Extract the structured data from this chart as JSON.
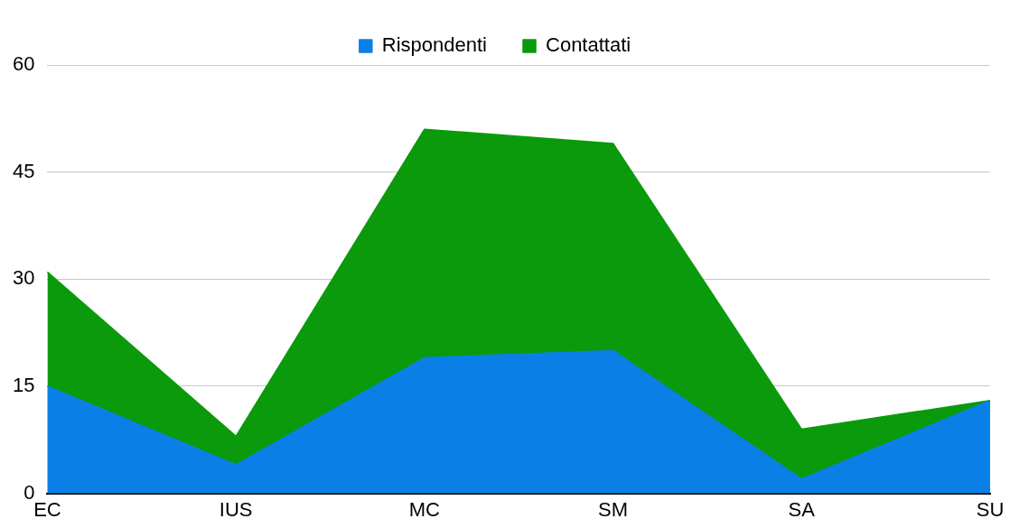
{
  "chart_data": {
    "type": "area",
    "categories": [
      "EC",
      "IUS",
      "MC",
      "SM",
      "SA",
      "SU"
    ],
    "series": [
      {
        "name": "Contattati",
        "color": "#0b9a0b",
        "values": [
          31,
          8,
          51,
          49,
          9,
          13
        ]
      },
      {
        "name": "Rispondenti",
        "color": "#0a80e6",
        "values": [
          15,
          4,
          19,
          20,
          2,
          13
        ]
      }
    ],
    "ylim": [
      0,
      60
    ],
    "yticks": [
      0,
      15,
      30,
      45,
      60
    ],
    "grid": "y",
    "legend": "top",
    "marker": "none"
  }
}
